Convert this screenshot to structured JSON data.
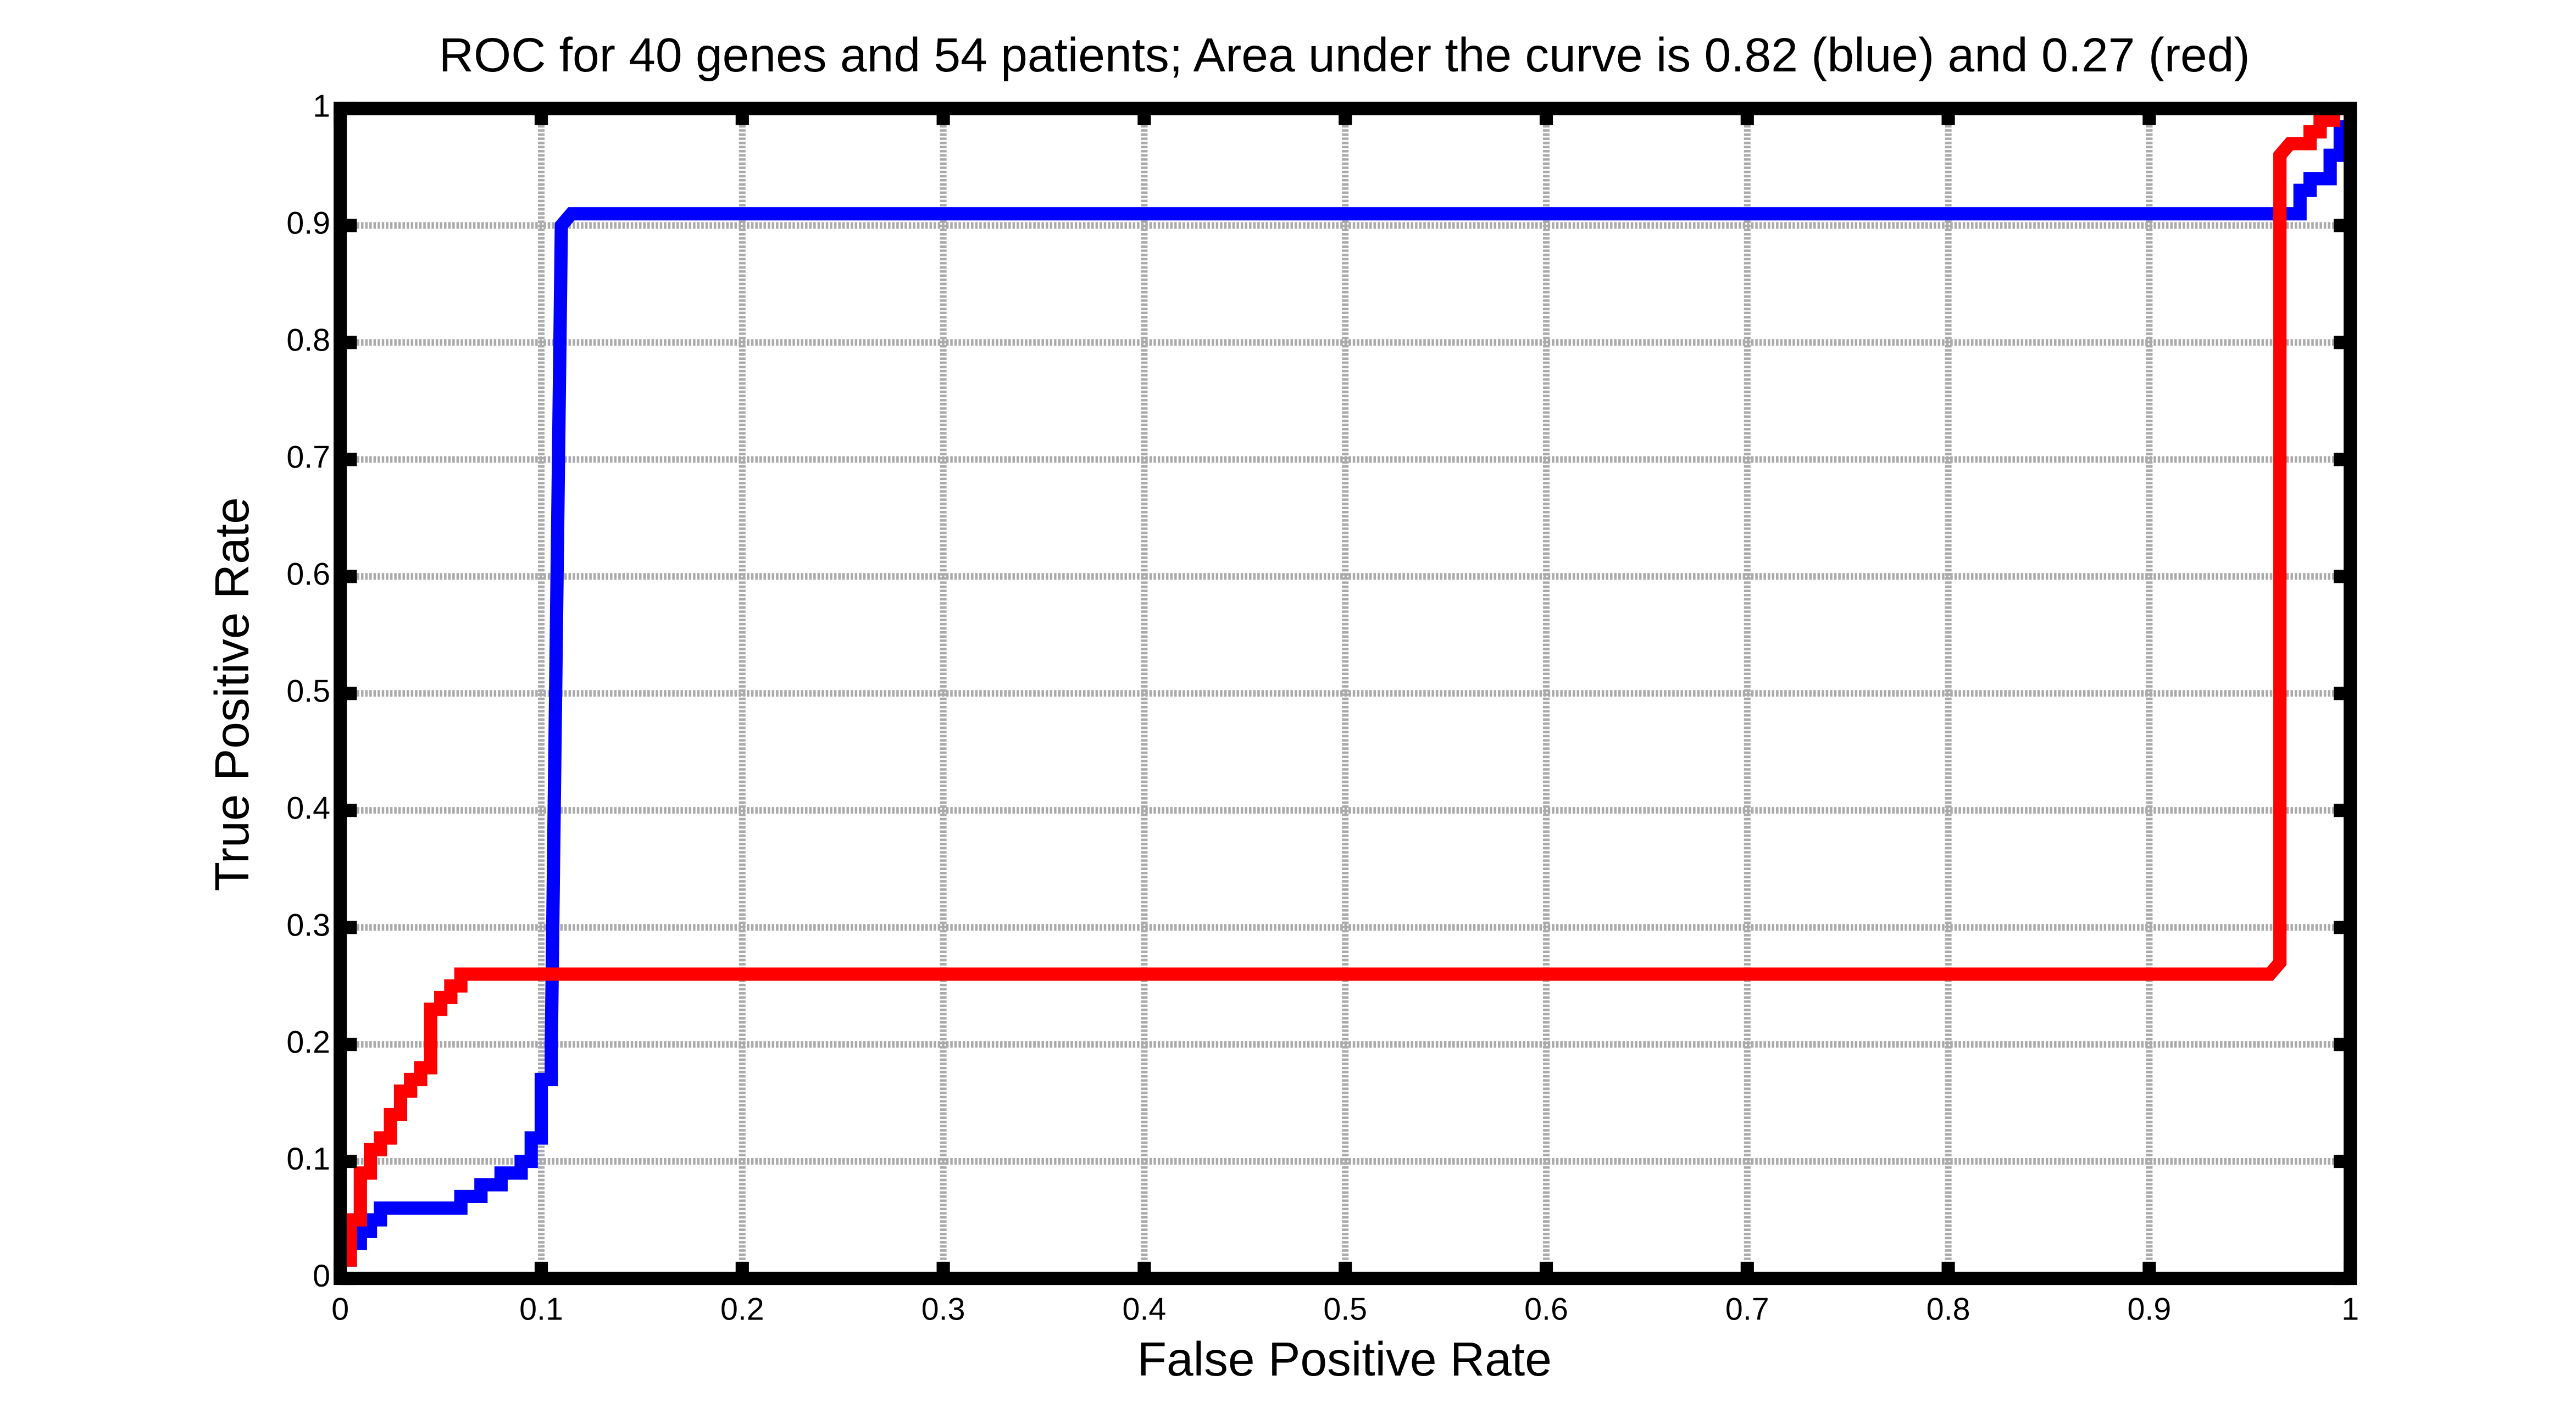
{
  "chart_data": {
    "type": "line",
    "title": "ROC for 40 genes and 54 patients; Area under the curve is 0.82 (blue) and  0.27 (red)",
    "xlabel": "False Positive Rate",
    "ylabel": "True Positive Rate",
    "xlim": [
      0,
      1
    ],
    "ylim": [
      0,
      1
    ],
    "xticks": [
      0,
      0.1,
      0.2,
      0.3,
      0.4,
      0.5,
      0.6,
      0.7,
      0.8,
      0.9,
      1
    ],
    "yticks": [
      0,
      0.1,
      0.2,
      0.3,
      0.4,
      0.5,
      0.6,
      0.7,
      0.8,
      0.9,
      1
    ],
    "grid": true,
    "series": [
      {
        "color": "#0000ff",
        "x": [
          0.005,
          0.005,
          0.01,
          0.01,
          0.015,
          0.015,
          0.02,
          0.02,
          0.06,
          0.06,
          0.07,
          0.07,
          0.08,
          0.08,
          0.09,
          0.09,
          0.095,
          0.095,
          0.1,
          0.1,
          0.105,
          0.105,
          0.11,
          0.115,
          0.975,
          0.975,
          0.98,
          0.98,
          0.99,
          0.99,
          0.995,
          0.995
        ],
        "values": [
          0.01,
          0.03,
          0.03,
          0.04,
          0.04,
          0.05,
          0.05,
          0.06,
          0.06,
          0.07,
          0.07,
          0.08,
          0.08,
          0.09,
          0.09,
          0.1,
          0.1,
          0.12,
          0.12,
          0.17,
          0.17,
          0.2,
          0.9,
          0.91,
          0.91,
          0.93,
          0.93,
          0.94,
          0.94,
          0.96,
          0.96,
          0.99
        ]
      },
      {
        "color": "#ff0000",
        "x": [
          0.005,
          0.005,
          0.01,
          0.01,
          0.015,
          0.015,
          0.02,
          0.02,
          0.025,
          0.025,
          0.03,
          0.03,
          0.035,
          0.035,
          0.04,
          0.04,
          0.045,
          0.045,
          0.05,
          0.05,
          0.055,
          0.055,
          0.06,
          0.06,
          0.96,
          0.965,
          0.965,
          0.97,
          0.98,
          0.98,
          0.985,
          0.985,
          0.995
        ],
        "values": [
          0.01,
          0.05,
          0.05,
          0.09,
          0.09,
          0.11,
          0.11,
          0.12,
          0.12,
          0.14,
          0.14,
          0.16,
          0.16,
          0.17,
          0.17,
          0.18,
          0.18,
          0.23,
          0.23,
          0.24,
          0.24,
          0.25,
          0.25,
          0.26,
          0.26,
          0.27,
          0.96,
          0.97,
          0.97,
          0.98,
          0.98,
          0.99,
          0.99
        ]
      }
    ]
  }
}
